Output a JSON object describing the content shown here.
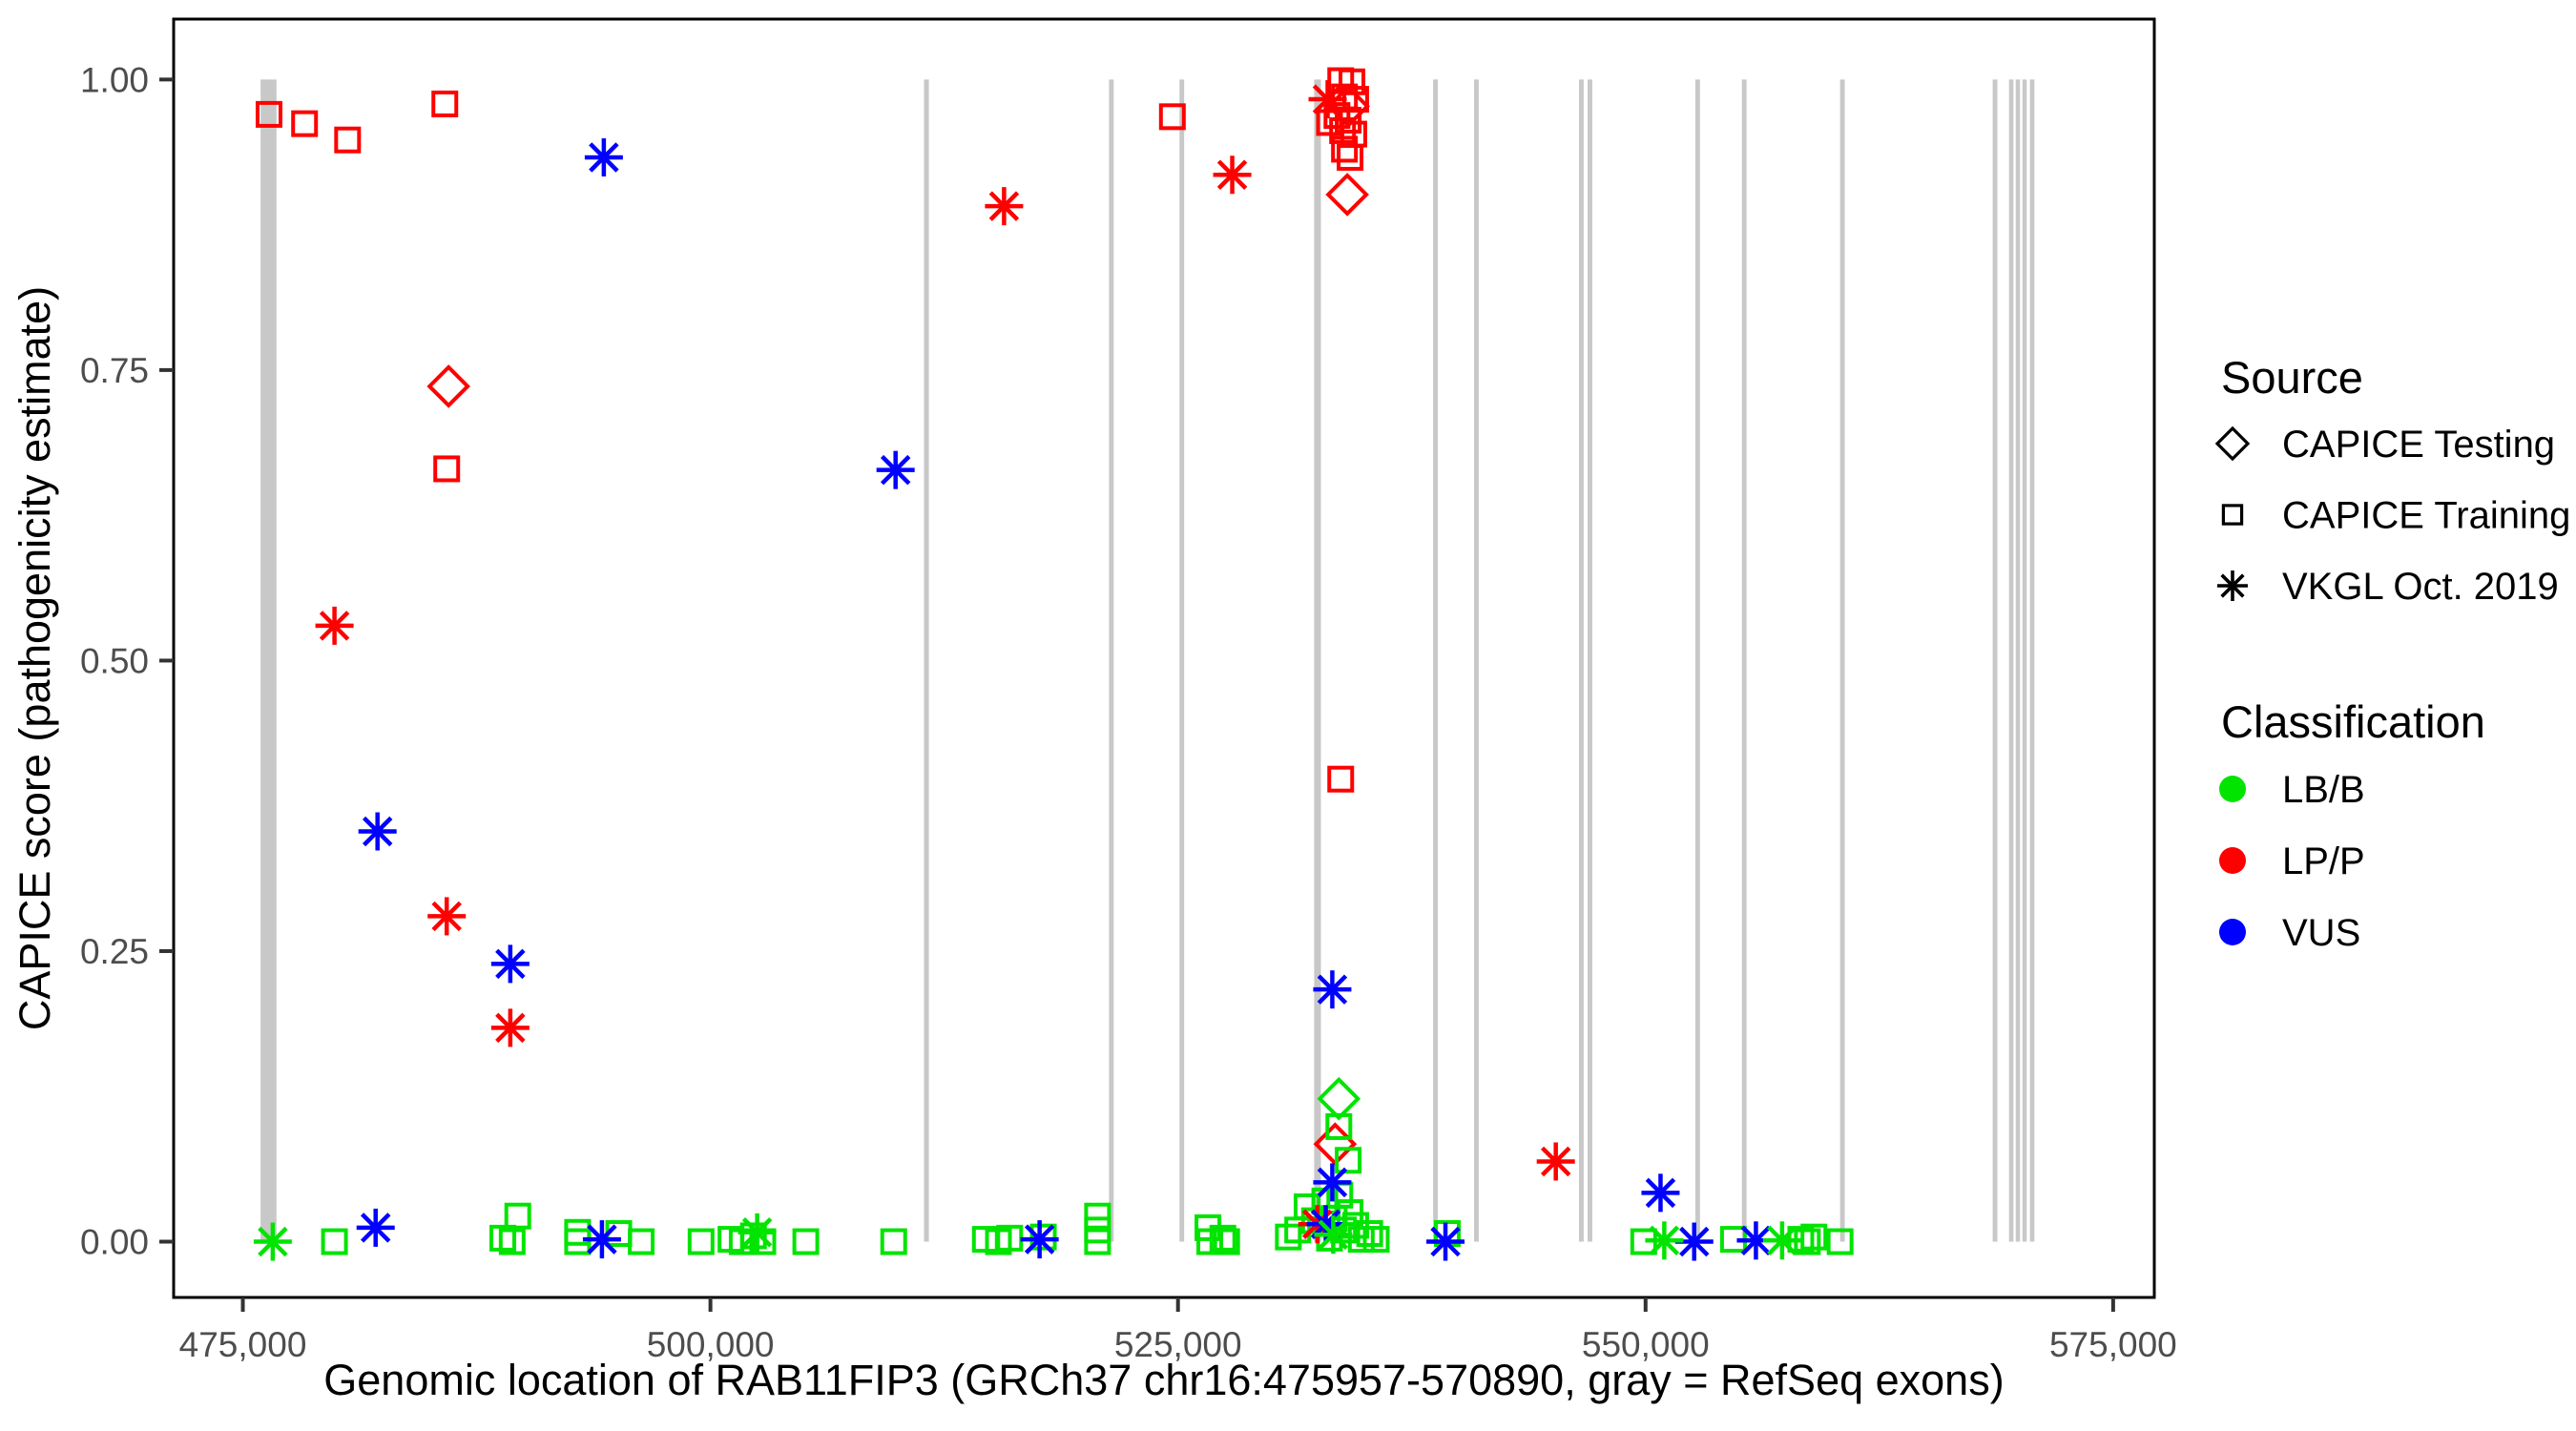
{
  "chart_data": {
    "type": "scatter",
    "title": "",
    "xlabel": "Genomic location of RAB11FIP3 (GRCh37 chr16:475957-570890, gray = RefSeq exons)",
    "ylabel": "CAPICE score (pathogenicity estimate)",
    "xlim": [
      471300,
      577200
    ],
    "ylim": [
      -0.048,
      1.052
    ],
    "grid": "off",
    "x_ticks": [
      {
        "value": 475000,
        "label": "475,000"
      },
      {
        "value": 500000,
        "label": "500,000"
      },
      {
        "value": 525000,
        "label": "525,000"
      },
      {
        "value": 550000,
        "label": "550,000"
      },
      {
        "value": 575000,
        "label": "575,000"
      }
    ],
    "y_ticks": [
      {
        "value": 0.0,
        "label": "0.00"
      },
      {
        "value": 0.25,
        "label": "0.25"
      },
      {
        "value": 0.5,
        "label": "0.50"
      },
      {
        "value": 0.75,
        "label": "0.75"
      },
      {
        "value": 1.0,
        "label": "1.00"
      }
    ],
    "exon_color": "#C8C8C8",
    "exons": [
      [
        475950,
        476800
      ],
      [
        511420,
        511680
      ],
      [
        521310,
        521560
      ],
      [
        525080,
        525330
      ],
      [
        532280,
        532640
      ],
      [
        538640,
        538890
      ],
      [
        540830,
        541080
      ],
      [
        546440,
        546690
      ],
      [
        546900,
        547150
      ],
      [
        552660,
        552910
      ],
      [
        555150,
        555400
      ],
      [
        560400,
        560650
      ],
      [
        568560,
        568810
      ],
      [
        569430,
        569670
      ],
      [
        569790,
        570020
      ],
      [
        570150,
        570380
      ],
      [
        570550,
        570790
      ]
    ],
    "series": [
      {
        "source": "CAPICE Testing",
        "classification": "LP/P",
        "shape": "diamond",
        "color": "#FF0000",
        "points": [
          [
            486000,
            0.736
          ],
          [
            534100,
            0.977
          ],
          [
            534050,
            0.901
          ],
          [
            533400,
            0.084
          ]
        ]
      },
      {
        "source": "CAPICE Testing",
        "classification": "LB/B",
        "shape": "diamond",
        "color": "#00E400",
        "points": [
          [
            533600,
            0.123
          ]
        ]
      },
      {
        "source": "CAPICE Training",
        "classification": "LP/P",
        "shape": "square",
        "color": "#FF0000",
        "points": [
          [
            476400,
            0.97
          ],
          [
            478300,
            0.962
          ],
          [
            480600,
            0.948
          ],
          [
            485800,
            0.979
          ],
          [
            485900,
            0.665
          ],
          [
            524700,
            0.968
          ],
          [
            533700,
            0.398
          ],
          [
            533700,
            0.999
          ],
          [
            534300,
            0.998
          ],
          [
            533900,
            0.985
          ],
          [
            534500,
            0.983
          ],
          [
            533500,
            0.969
          ],
          [
            534100,
            0.965
          ],
          [
            533100,
            0.963
          ],
          [
            533800,
            0.956
          ],
          [
            534400,
            0.953
          ],
          [
            533900,
            0.94
          ],
          [
            534200,
            0.933
          ]
        ]
      },
      {
        "source": "CAPICE Training",
        "classification": "LB/B",
        "shape": "square",
        "color": "#00E400",
        "points": [
          [
            479900,
            0.0
          ],
          [
            488900,
            0.003
          ],
          [
            489400,
            0.0
          ],
          [
            489700,
            0.022
          ],
          [
            492900,
            0.008
          ],
          [
            492900,
            0.0
          ],
          [
            495100,
            0.007
          ],
          [
            496300,
            0.0
          ],
          [
            499500,
            0.0
          ],
          [
            501100,
            0.002
          ],
          [
            501700,
            0.0
          ],
          [
            502300,
            0.005
          ],
          [
            502800,
            0.0
          ],
          [
            505100,
            0.0
          ],
          [
            509800,
            0.0
          ],
          [
            514700,
            0.002
          ],
          [
            515400,
            0.0
          ],
          [
            516000,
            0.003
          ],
          [
            517800,
            0.004
          ],
          [
            520700,
            0.022
          ],
          [
            520700,
            0.01
          ],
          [
            520700,
            0.0
          ],
          [
            526600,
            0.012
          ],
          [
            526700,
            0.0
          ],
          [
            527400,
            0.003
          ],
          [
            527600,
            0.0
          ],
          [
            530900,
            0.004
          ],
          [
            531400,
            0.01
          ],
          [
            531900,
            0.03
          ],
          [
            532300,
            0.018
          ],
          [
            532850,
            0.035
          ],
          [
            533100,
            0.003
          ],
          [
            533350,
            0.02
          ],
          [
            533650,
            0.04
          ],
          [
            533850,
            0.01
          ],
          [
            534200,
            0.025
          ],
          [
            534500,
            0.014
          ],
          [
            534800,
            0.002
          ],
          [
            535250,
            0.007
          ],
          [
            535600,
            0.002
          ],
          [
            533600,
            0.099
          ],
          [
            534100,
            0.07
          ],
          [
            539400,
            0.007
          ],
          [
            549900,
            0.0
          ],
          [
            554700,
            0.002
          ],
          [
            558300,
            0.002
          ],
          [
            558650,
            0.0
          ],
          [
            559000,
            0.004
          ],
          [
            560400,
            0.0
          ]
        ]
      },
      {
        "source": "VKGL Oct. 2019",
        "classification": "LP/P",
        "shape": "asterisk",
        "color": "#FF0000",
        "points": [
          [
            479900,
            0.53
          ],
          [
            485900,
            0.28
          ],
          [
            489300,
            0.184
          ],
          [
            515700,
            0.891
          ],
          [
            527900,
            0.918
          ],
          [
            533000,
            0.983
          ],
          [
            545200,
            0.069
          ],
          [
            532450,
            0.015
          ]
        ]
      },
      {
        "source": "VKGL Oct. 2019",
        "classification": "VUS",
        "shape": "asterisk",
        "color": "#0000FF",
        "points": [
          [
            494300,
            0.933
          ],
          [
            509900,
            0.664
          ],
          [
            482200,
            0.353
          ],
          [
            489300,
            0.239
          ],
          [
            533250,
            0.217
          ],
          [
            533250,
            0.051
          ],
          [
            532900,
            0.015
          ],
          [
            482100,
            0.012
          ],
          [
            494200,
            0.002
          ],
          [
            517600,
            0.002
          ],
          [
            539300,
            0.0
          ],
          [
            550800,
            0.042
          ],
          [
            552600,
            0.0
          ],
          [
            555900,
            0.001
          ]
        ]
      },
      {
        "source": "VKGL Oct. 2019",
        "classification": "LB/B",
        "shape": "asterisk",
        "color": "#00E400",
        "points": [
          [
            476600,
            0.0
          ],
          [
            502500,
            0.008
          ],
          [
            533300,
            0.006
          ],
          [
            551000,
            0.001
          ],
          [
            557300,
            0.001
          ]
        ]
      }
    ]
  },
  "legend": {
    "source": {
      "title": "Source",
      "items": [
        {
          "label": "CAPICE Testing",
          "shape": "diamond"
        },
        {
          "label": "CAPICE Training",
          "shape": "square"
        },
        {
          "label": "VKGL Oct. 2019",
          "shape": "asterisk"
        }
      ]
    },
    "classification": {
      "title": "Classification",
      "items": [
        {
          "label": "LB/B",
          "color": "#00E400"
        },
        {
          "label": "LP/P",
          "color": "#FF0000"
        },
        {
          "label": "VUS",
          "color": "#0000FF"
        }
      ]
    }
  }
}
